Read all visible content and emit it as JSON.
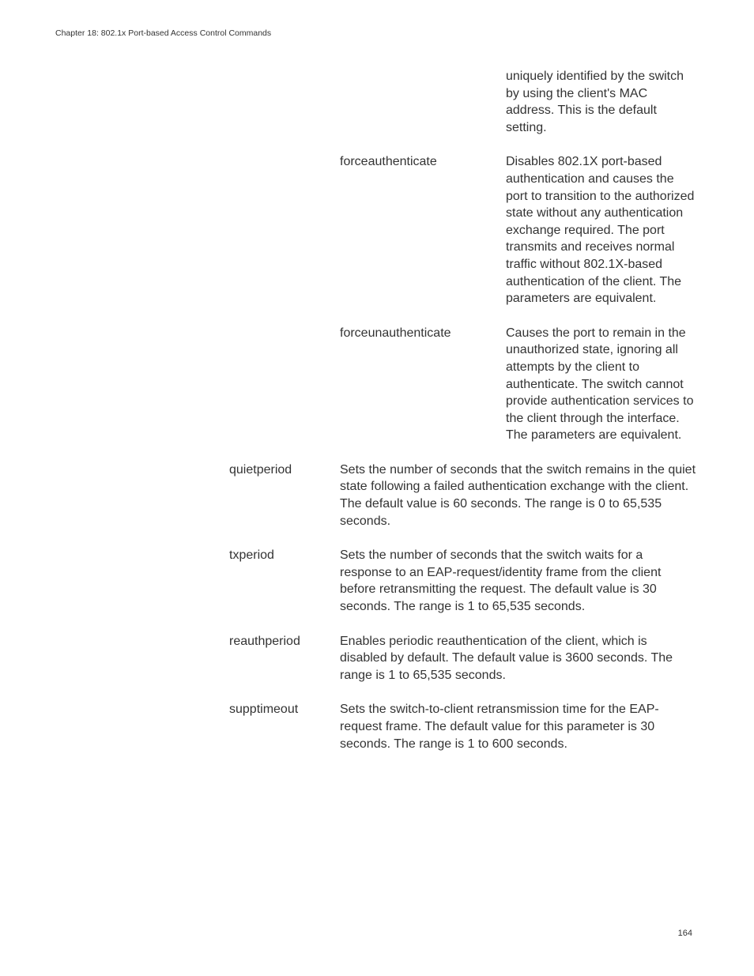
{
  "header": "Chapter 18: 802.1x Port-based Access Control Commands",
  "continuation_top": "uniquely identified by the switch by using the client's MAC address. This is the default setting.",
  "sub_params": [
    {
      "term": "forceauthenticate",
      "desc": "Disables 802.1X port-based authentication and causes the port to transition to the authorized state without any authentication exchange required. The port transmits and receives normal traffic without 802.1X-based authentication of the client. The parameters are equivalent."
    },
    {
      "term": "forceunauthenticate",
      "desc": "Causes the port to remain in the unauthorized state, ignoring all attempts by the client to authenticate. The switch cannot provide authentication services to the client through the interface. The parameters are equivalent."
    }
  ],
  "main_params": [
    {
      "term": "quietperiod",
      "desc": "Sets the number of seconds that the switch remains in the quiet state following a failed authentication exchange with the client. The default value is 60 seconds. The range is 0 to 65,535 seconds."
    },
    {
      "term": "txperiod",
      "desc": "Sets the number of seconds that the switch waits for a response to an EAP-request/identity frame from the client before retransmitting the request. The default value is 30 seconds. The range is 1 to 65,535 seconds."
    },
    {
      "term": "reauthperiod",
      "desc": "Enables periodic reauthentication of the client, which is disabled by default. The default value is 3600 seconds. The range is 1 to 65,535 seconds."
    },
    {
      "term": "supptimeout",
      "desc": "Sets the switch-to-client retransmission time for the EAP-request frame. The default value for this parameter is 30 seconds. The range is 1 to 600 seconds."
    }
  ],
  "page_number": "164"
}
